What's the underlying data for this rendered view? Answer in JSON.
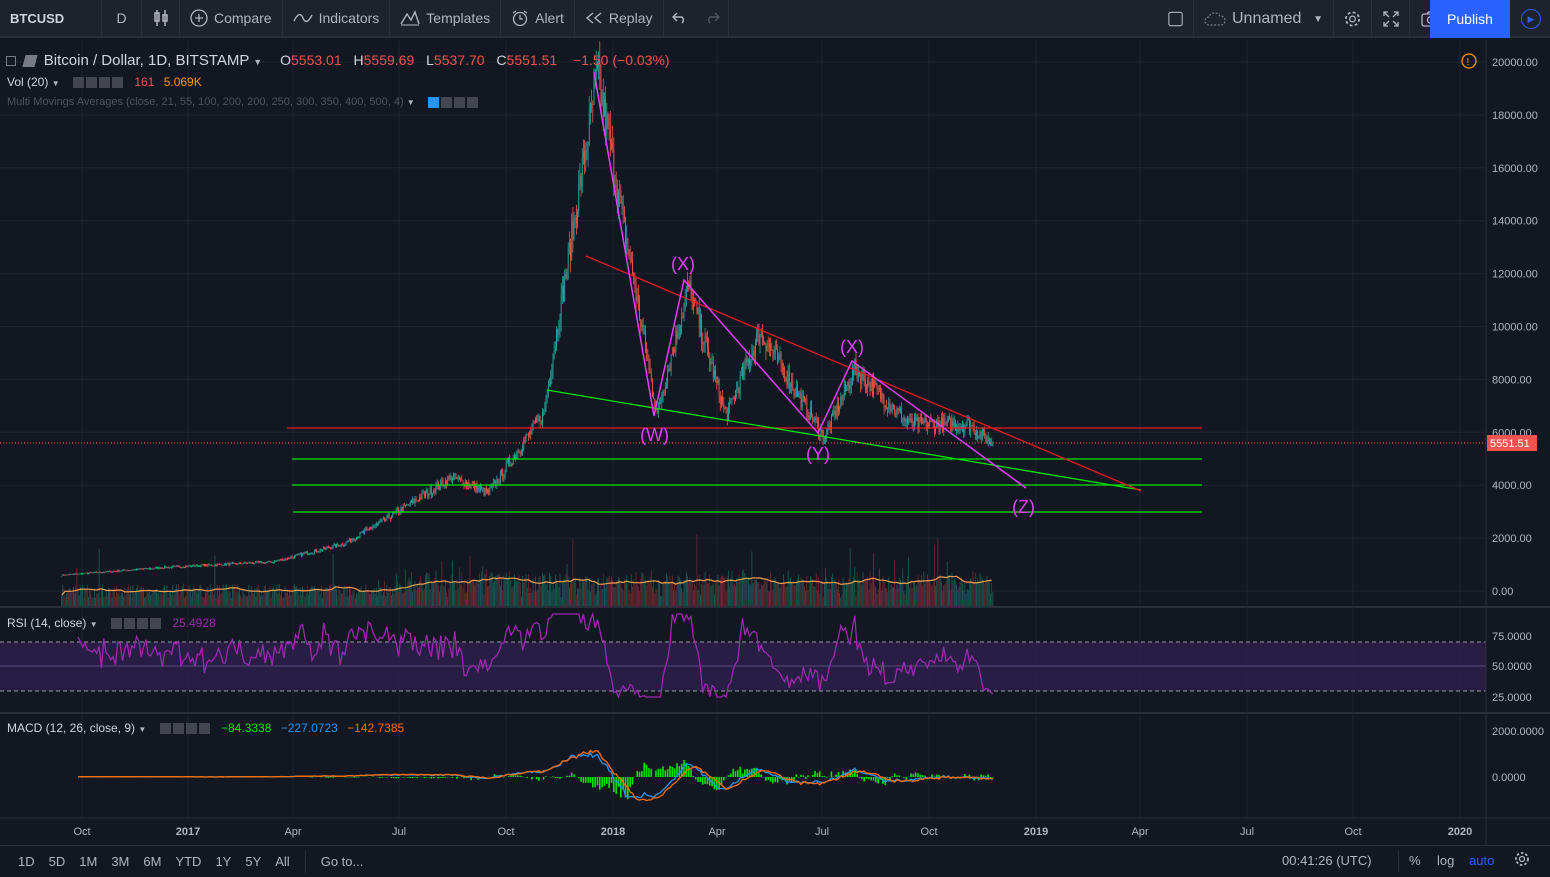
{
  "toolbar": {
    "symbol": "BTCUSD",
    "interval": "D",
    "compare": "Compare",
    "indicators": "Indicators",
    "templates": "Templates",
    "alert": "Alert",
    "replay": "Replay",
    "layout_name": "Unnamed",
    "publish": "Publish"
  },
  "legend": {
    "title": "Bitcoin / Dollar, 1D, BITSTAMP",
    "o_label": "O",
    "o_value": "5553.01",
    "h_label": "H",
    "h_value": "5559.69",
    "l_label": "L",
    "l_value": "5537.70",
    "c_label": "C",
    "c_value": "5551.51",
    "change": "−1.50 (−0.03%)",
    "vol_label": "Vol (20)",
    "vol_value1": "161",
    "vol_value2": "5.069K",
    "ma_label": "Multi Movings Averages (close, 21, 55, 100, 200, 200, 250, 300, 350, 400, 500, 4)"
  },
  "rsi": {
    "label": "RSI (14, close)",
    "value": "25.4928"
  },
  "macd": {
    "label": "MACD (12, 26, close, 9)",
    "v1": "−84.3338",
    "v2": "−227.0723",
    "v3": "−142.7385"
  },
  "price_axis": {
    "ticks": [
      "20000.00",
      "18000.00",
      "16000.00",
      "14000.00",
      "12000.00",
      "10000.00",
      "8000.00",
      "6000.00",
      "4000.00",
      "2000.00",
      "0.00"
    ],
    "last_price": "5551.51"
  },
  "rsi_axis": {
    "ticks": [
      "75.0000",
      "50.0000",
      "25.0000"
    ]
  },
  "macd_axis": {
    "ticks": [
      "2000.0000",
      "0.0000"
    ]
  },
  "time_axis": {
    "ticks": [
      "Oct",
      "2017",
      "Apr",
      "Jul",
      "Oct",
      "2018",
      "Apr",
      "Jul",
      "Oct",
      "2019",
      "Apr",
      "Jul",
      "Oct",
      "2020"
    ]
  },
  "annotations": {
    "w": "(W)",
    "x1": "(X)",
    "y": "(Y)",
    "x2": "(X)",
    "z": "(Z)"
  },
  "bottom": {
    "ranges": [
      "1D",
      "5D",
      "1M",
      "3M",
      "6M",
      "YTD",
      "1Y",
      "5Y",
      "All"
    ],
    "goto": "Go to...",
    "time": "00:41:26 (UTC)",
    "percent": "%",
    "log": "log",
    "auto": "auto"
  },
  "colors": {
    "up": "#26a69a",
    "down": "#ef5350",
    "wave": "#e040fb",
    "support": "#00e600",
    "resistance": "#e51c23",
    "accent": "#2962ff"
  },
  "chart_data": {
    "type": "candlestick",
    "x": [
      "2016-09-15",
      "2016-12-15",
      "2017-03-15",
      "2017-05-15",
      "2017-06-15",
      "2017-08-15",
      "2017-09-15",
      "2017-11-01",
      "2017-12-17",
      "2018-02-06",
      "2018-03-05",
      "2018-04-06",
      "2018-05-05",
      "2018-06-29",
      "2018-07-25",
      "2018-09-10",
      "2018-10-31",
      "2018-11-20"
    ],
    "close": [
      600,
      900,
      1100,
      1800,
      2600,
      4300,
      3700,
      6700,
      19500,
      6700,
      11500,
      6600,
      9800,
      5800,
      8400,
      6300,
      6300,
      5551.51
    ],
    "ylim": [
      -700,
      20600
    ]
  }
}
